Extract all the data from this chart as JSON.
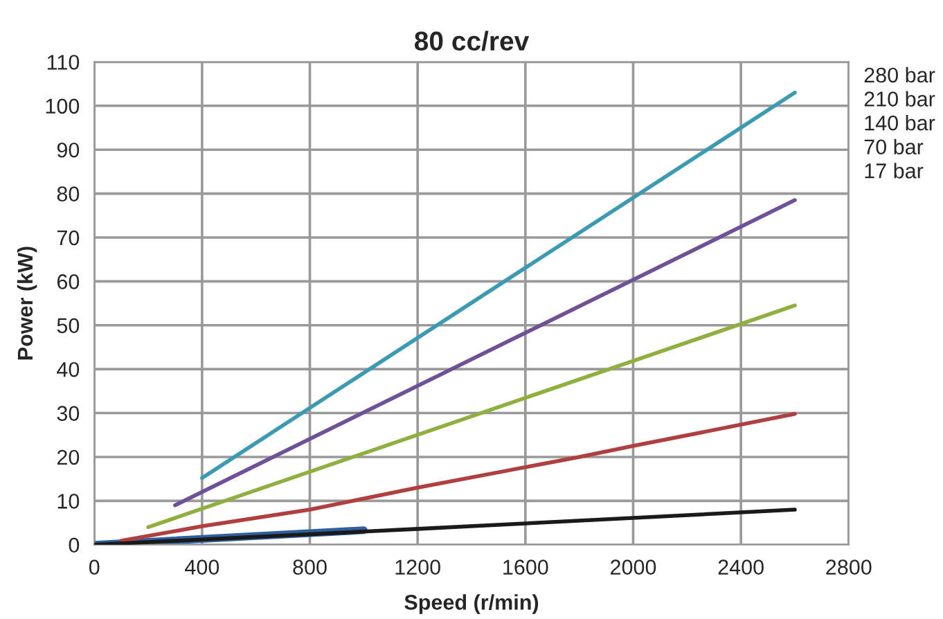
{
  "chart_data": {
    "type": "line",
    "title": "80 cc/rev",
    "xlabel": "Speed (r/min)",
    "ylabel": "Power (kW)",
    "series": [
      {
        "name": "280 bar",
        "color": "#3a9bb3",
        "x": [
          400,
          2600
        ],
        "values": [
          15.2,
          103
        ]
      },
      {
        "name": "210 bar",
        "color": "#6e5196",
        "x": [
          300,
          2600
        ],
        "values": [
          9,
          78.5
        ]
      },
      {
        "name": "140 bar",
        "color": "#8fb03e",
        "x": [
          200,
          2600
        ],
        "values": [
          4,
          54.5
        ]
      },
      {
        "name": "70 bar",
        "color": "#b0403f",
        "x": [
          100,
          400,
          800,
          1200,
          1800,
          2000,
          2600
        ],
        "values": [
          0.9,
          4.2,
          8,
          13,
          20,
          22.5,
          29.8
        ]
      },
      {
        "name": "17 bar",
        "color": "#1a1a1a",
        "x": [
          0,
          1200,
          2600
        ],
        "values": [
          0,
          3.6,
          8
        ]
      },
      {
        "color": "#2e5f9e",
        "x": [
          0,
          1000
        ],
        "values": [
          0,
          3.3
        ]
      }
    ],
    "xlim": [
      0,
      2800
    ],
    "xticks": [
      0,
      400,
      800,
      1200,
      1600,
      2000,
      2400,
      2800
    ],
    "ylim": [
      0,
      110
    ],
    "yticks": [
      0,
      10,
      20,
      30,
      40,
      50,
      60,
      70,
      80,
      90,
      100,
      110
    ],
    "grid": true,
    "legend": "top right"
  }
}
